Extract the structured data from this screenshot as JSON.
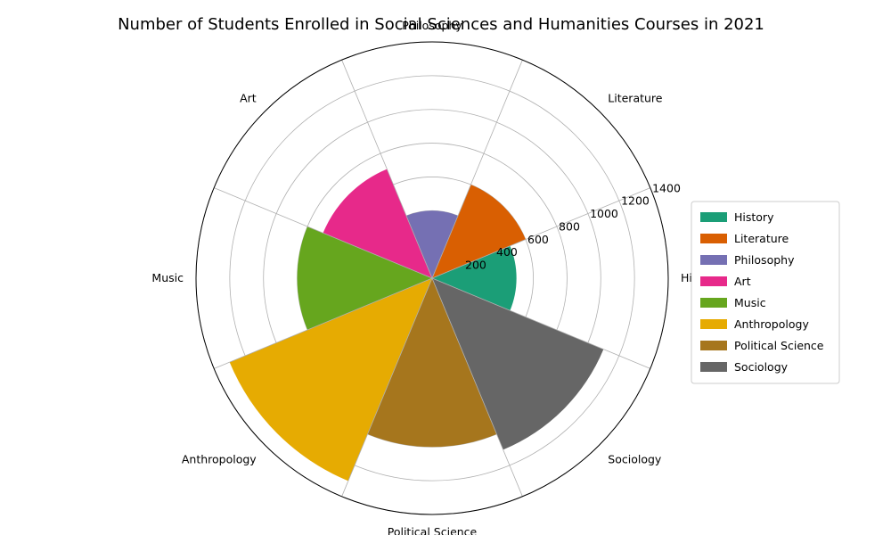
{
  "chart_data": {
    "type": "polar-bar",
    "title": "Number of Students Enrolled in Social Sciences and Humanities Courses in 2021",
    "categories": [
      "History",
      "Literature",
      "Philosophy",
      "Art",
      "Music",
      "Anthropology",
      "Political Science",
      "Sociology"
    ],
    "values": [
      500,
      600,
      400,
      700,
      800,
      1300,
      1000,
      1100
    ],
    "colors": [
      "#1b9e77",
      "#d95f02",
      "#7570b3",
      "#e7298a",
      "#66a61e",
      "#e6ab02",
      "#a6761d",
      "#666666"
    ],
    "radial_ticks": [
      200,
      400,
      600,
      800,
      1000,
      1200,
      1400
    ],
    "rlim": [
      0,
      1400
    ],
    "grid": true,
    "legend_position": "right"
  }
}
